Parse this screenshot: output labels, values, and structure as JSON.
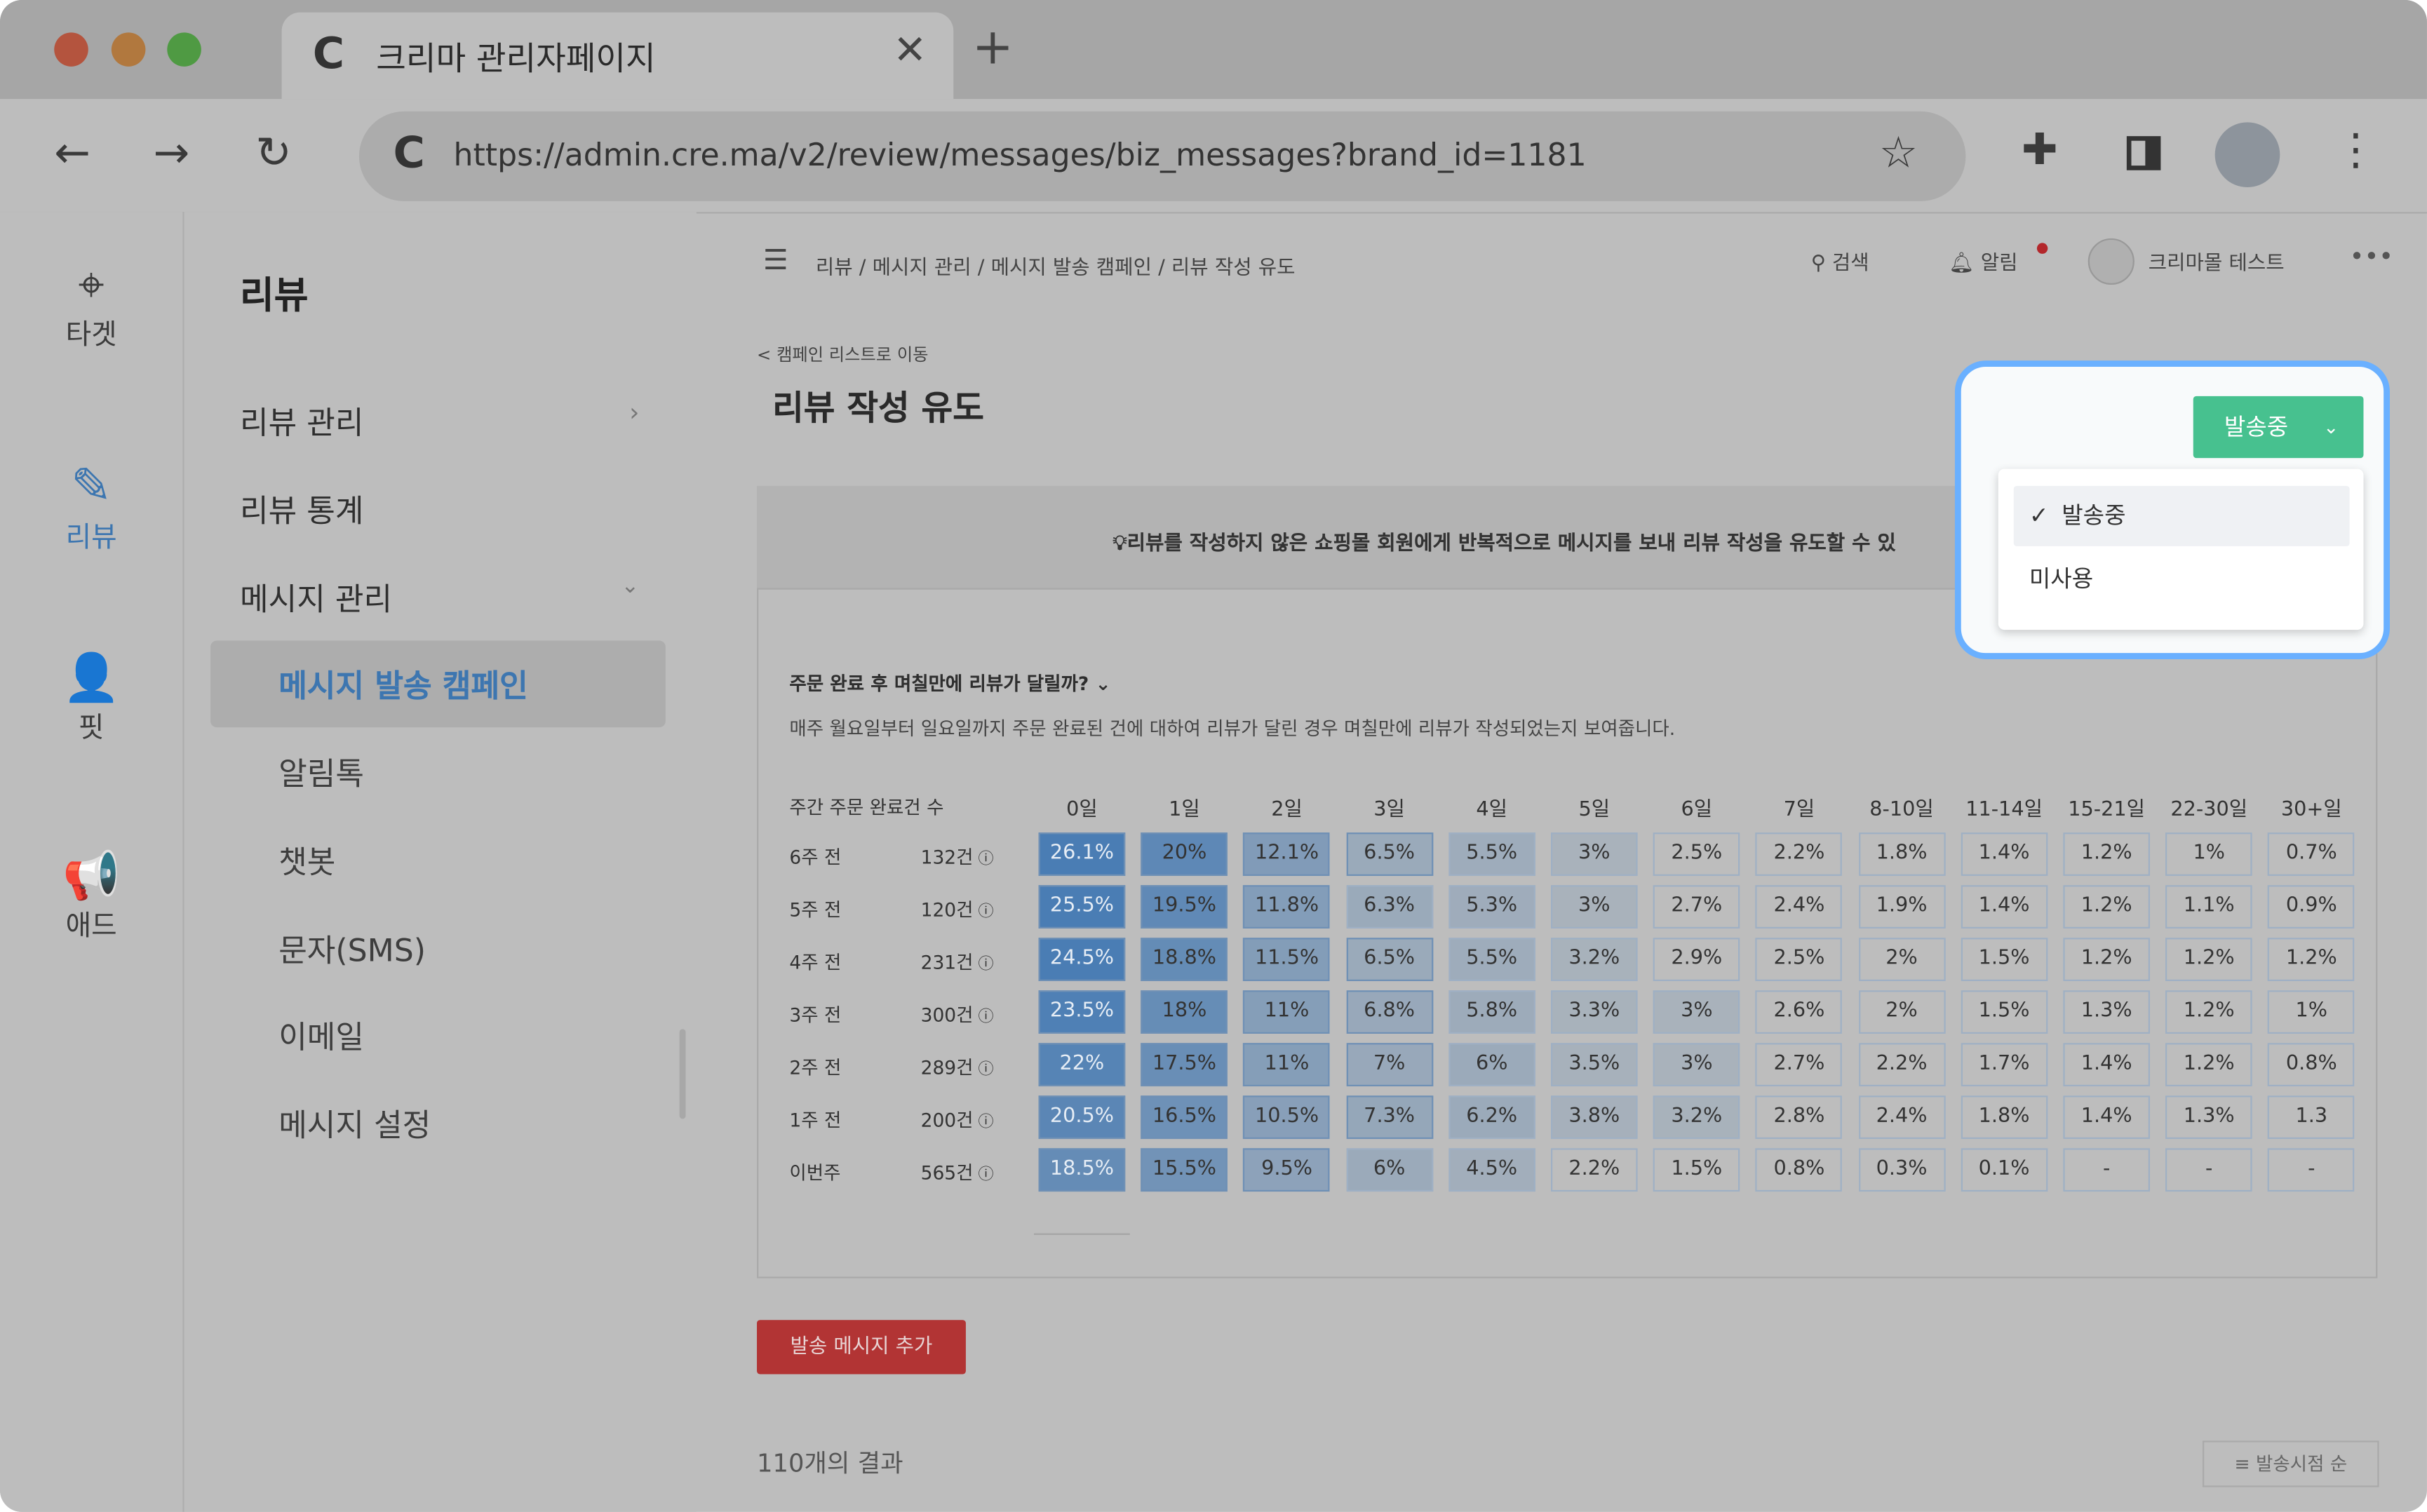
{
  "browser": {
    "tab_title": "크리마 관리자페이지",
    "tab_favicon": "C",
    "url": "https://admin.cre.ma/v2/review/messages/biz_messages?brand_id=1181",
    "url_icon": "C"
  },
  "rail": [
    {
      "label": "타겟",
      "icon": "map-pin-icon"
    },
    {
      "label": "리뷰",
      "icon": "edit-icon",
      "active": true
    },
    {
      "label": "핏",
      "icon": "user-check-icon"
    },
    {
      "label": "애드",
      "icon": "megaphone-icon"
    }
  ],
  "sidebar": {
    "title": "리뷰",
    "items": [
      {
        "label": "리뷰 관리"
      },
      {
        "label": "리뷰 통계"
      },
      {
        "label": "메시지 관리"
      }
    ],
    "subitems": [
      {
        "label": "메시지 발송 캠페인",
        "active": true
      },
      {
        "label": "알림톡"
      },
      {
        "label": "챗봇"
      },
      {
        "label": "문자(SMS)"
      },
      {
        "label": "이메일"
      },
      {
        "label": "메시지 설정"
      }
    ]
  },
  "header": {
    "breadcrumb": [
      "리뷰",
      "메시지 관리",
      "메시지 발송 캠페인",
      "리뷰 작성 유도"
    ],
    "search": "검색",
    "notifications": "알림",
    "user": "크리마몰 테스트"
  },
  "page": {
    "back_link": "< 캠페인 리스트로 이동",
    "title": "리뷰 작성 유도",
    "banner": "리뷰를 작성하지 않은 쇼핑몰 회원에게 반복적으로 메시지를 보내 리뷰 작성을 유도할 수 있",
    "status_button": "발송중",
    "status_options": [
      {
        "label": "발송중",
        "selected": true
      },
      {
        "label": "미사용",
        "selected": false
      }
    ],
    "add_button": "발송 메시지 추가",
    "result_count": "110개의 결과",
    "sort_button": "발송시점 순"
  },
  "cohort": {
    "heading": "주문 완료 후 며칠만에 리뷰가 달릴까?",
    "description": "매주 월요일부터 일요일까지 주문 완료된 건에 대하여 리뷰가 달린 경우 며칠만에 리뷰가 작성되었는지 보여줍니다.",
    "count_header": "주간 주문 완료건 수",
    "columns": [
      "0일",
      "1일",
      "2일",
      "3일",
      "4일",
      "5일",
      "6일",
      "7일",
      "8-10일",
      "11-14일",
      "15-21일",
      "22-30일",
      "30+일"
    ],
    "rows": [
      {
        "label": "6주 전",
        "count": "132건",
        "values": [
          "26.1%",
          "20%",
          "12.1%",
          "6.5%",
          "5.5%",
          "3%",
          "2.5%",
          "2.2%",
          "1.8%",
          "1.4%",
          "1.2%",
          "1%",
          "0.7%"
        ]
      },
      {
        "label": "5주 전",
        "count": "120건",
        "values": [
          "25.5%",
          "19.5%",
          "11.8%",
          "6.3%",
          "5.3%",
          "3%",
          "2.7%",
          "2.4%",
          "1.9%",
          "1.4%",
          "1.2%",
          "1.1%",
          "0.9%"
        ]
      },
      {
        "label": "4주 전",
        "count": "231건",
        "values": [
          "24.5%",
          "18.8%",
          "11.5%",
          "6.5%",
          "5.5%",
          "3.2%",
          "2.9%",
          "2.5%",
          "2%",
          "1.5%",
          "1.2%",
          "1.2%",
          "1.2%"
        ]
      },
      {
        "label": "3주 전",
        "count": "300건",
        "values": [
          "23.5%",
          "18%",
          "11%",
          "6.8%",
          "5.8%",
          "3.3%",
          "3%",
          "2.6%",
          "2%",
          "1.5%",
          "1.3%",
          "1.2%",
          "1%"
        ]
      },
      {
        "label": "2주 전",
        "count": "289건",
        "values": [
          "22%",
          "17.5%",
          "11%",
          "7%",
          "6%",
          "3.5%",
          "3%",
          "2.7%",
          "2.2%",
          "1.7%",
          "1.4%",
          "1.2%",
          "0.8%"
        ]
      },
      {
        "label": "1주 전",
        "count": "200건",
        "values": [
          "20.5%",
          "16.5%",
          "10.5%",
          "7.3%",
          "6.2%",
          "3.8%",
          "3.2%",
          "2.8%",
          "2.4%",
          "1.8%",
          "1.4%",
          "1.3%",
          "1.3"
        ]
      },
      {
        "label": "이번주",
        "count": "565건",
        "values": [
          "18.5%",
          "15.5%",
          "9.5%",
          "6%",
          "4.5%",
          "2.2%",
          "1.5%",
          "0.8%",
          "0.3%",
          "0.1%",
          "-",
          "-",
          "-"
        ]
      }
    ]
  },
  "colors": {
    "accent_blue": "#4a7fb5",
    "status_green": "#47c18f",
    "add_red": "#b73535",
    "highlight": "#6ab0ff"
  }
}
